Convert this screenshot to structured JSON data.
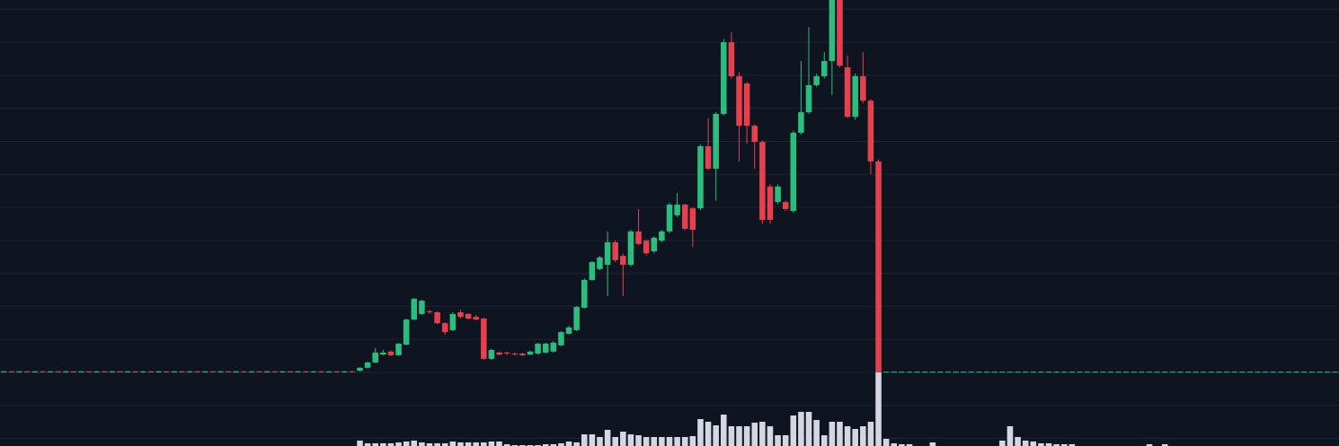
{
  "chart_data": {
    "type": "candlestick",
    "open": [
      0,
      0.3,
      0,
      0.3,
      0,
      0.3,
      0,
      0.3,
      0,
      0.3,
      0,
      0.3,
      0,
      0.3,
      0,
      0.3,
      0,
      0.3,
      0,
      0.3,
      0,
      0.3,
      0,
      0.3,
      0,
      0.3,
      0,
      0.3,
      0,
      0.3,
      0,
      0.3,
      0,
      0.3,
      0,
      0.3,
      0,
      0.3,
      0,
      0.3,
      0,
      0.3,
      0,
      0.3,
      0,
      0.3,
      0.5,
      1.4,
      3.0,
      5.4,
      6.3,
      5.2,
      8.4,
      16.0,
      17.7,
      18.5,
      18.2,
      14.9,
      12.8,
      18.2,
      17.7,
      16.8,
      16.3,
      4.1,
      6.0,
      6.0,
      5.7,
      5.7,
      5.4,
      5.7,
      6.0,
      6.3,
      8.2,
      11.7,
      12.8,
      19.6,
      28.0,
      31.3,
      32.6,
      39.4,
      35.3,
      32.6,
      42.7,
      39.9,
      36.7,
      39.9,
      42.7,
      47.6,
      50.8,
      49.7,
      49.7,
      68.5,
      61.7,
      78.3,
      100.0,
      89.7,
      87.5,
      74.7,
      69.8,
      56.3,
      51.6,
      51.6,
      48.9,
      72.6,
      78.8,
      87.0,
      89.7,
      94.3,
      112.8,
      92.4,
      77.4,
      89.7,
      82.3,
      63.9,
      0.1,
      0.1,
      0.1,
      0.1,
      0.1,
      0.1,
      0.1,
      0.1,
      0.1,
      0.1,
      0.1,
      0.1,
      0.1,
      0.1,
      0.1,
      0.1,
      0.1,
      0.1,
      0.1,
      0.1,
      0.1,
      0.1,
      0.1,
      0.1,
      0.1,
      0.1,
      0.1,
      0.1,
      0.1,
      0.1,
      0.1,
      0.1,
      0.1,
      0.1,
      0.1,
      0.1,
      0.1,
      0.1,
      0.1,
      0.1,
      0.1,
      0.1,
      0.1,
      0.1,
      0.1,
      0.1,
      0.1,
      0.1,
      0.1,
      0.1,
      0.1,
      0.1,
      0.1,
      0.1,
      0.1,
      0.1,
      0.1,
      0.1,
      0.1
    ],
    "high": [
      0.4,
      0.4,
      0.4,
      0.4,
      0.4,
      0.4,
      0.4,
      0.4,
      0.4,
      0.4,
      0.4,
      0.4,
      0.4,
      0.4,
      0.4,
      0.4,
      0.4,
      0.4,
      0.4,
      0.4,
      0.4,
      0.4,
      0.4,
      0.4,
      0.4,
      0.4,
      0.4,
      0.4,
      0.4,
      0.4,
      0.4,
      0.4,
      0.4,
      0.4,
      0.4,
      0.4,
      0.4,
      0.4,
      0.4,
      0.4,
      0.4,
      0.4,
      0.4,
      0.4,
      0.4,
      0.4,
      1.6,
      3.3,
      7.3,
      6.8,
      6.6,
      8.9,
      16.3,
      22.6,
      22.0,
      19.0,
      18.5,
      15.2,
      18.2,
      19.0,
      18.0,
      17.4,
      16.6,
      7.1,
      6.3,
      6.3,
      6.0,
      6.0,
      6.6,
      9.0,
      9.0,
      9.5,
      12.5,
      14.1,
      20.1,
      28.5,
      33.7,
      35.3,
      42.7,
      40.0,
      36.0,
      43.2,
      49.5,
      40.3,
      41.2,
      43.2,
      51.4,
      54.3,
      51.1,
      50.0,
      69.0,
      77.0,
      78.8,
      101.0,
      103.0,
      91.0,
      88.0,
      75.2,
      70.3,
      57.0,
      57.0,
      52.0,
      73.2,
      94.3,
      104.6,
      90.5,
      97.0,
      112.8,
      112.8,
      96.0,
      90.5,
      97.0,
      82.8,
      64.5,
      0.3,
      0.3,
      0.3,
      0.3,
      0.3,
      0.3,
      0.3,
      0.3,
      0.3,
      0.3,
      0.3,
      0.3,
      0.3,
      0.3,
      0.3,
      0.3,
      0.3,
      0.3,
      0.3,
      0.3,
      0.3,
      0.3,
      0.3,
      0.3,
      0.3,
      0.3,
      0.3,
      0.3,
      0.3,
      0.3,
      0.3,
      0.3,
      0.3,
      0.3,
      0.3,
      0.3,
      0.3,
      0.3,
      0.3,
      0.3,
      0.3,
      0.3,
      0.3,
      0.3,
      0.3,
      0.3,
      0.3,
      0.3,
      0.3,
      0.3,
      0.3,
      0.3,
      0.3,
      0.3,
      0.3,
      0.3,
      0.3,
      0.3,
      0.3
    ],
    "low": [
      0,
      0,
      0,
      0,
      0,
      0,
      0,
      0,
      0,
      0,
      0,
      0,
      0,
      0,
      0,
      0,
      0,
      0,
      0,
      0,
      0,
      0,
      0,
      0,
      0,
      0,
      0,
      0,
      0,
      0,
      0,
      0,
      0,
      0,
      0,
      0,
      0,
      0,
      0,
      0,
      0,
      0,
      0,
      0,
      0,
      0,
      0.3,
      1.2,
      2.8,
      5.2,
      4.9,
      5.0,
      8.2,
      15.8,
      17.4,
      17.7,
      14.6,
      11.4,
      12.5,
      16.3,
      16.0,
      15.8,
      3.8,
      3.8,
      5.2,
      5.2,
      5.2,
      4.9,
      5.2,
      5.4,
      5.7,
      6.0,
      7.9,
      11.4,
      12.5,
      19.3,
      27.7,
      31.0,
      23.1,
      33.4,
      23.1,
      32.0,
      38.5,
      35.5,
      36.1,
      39.4,
      42.2,
      47.0,
      43.0,
      38.0,
      49.2,
      61.2,
      52.0,
      77.8,
      89.0,
      63.9,
      69.3,
      61.7,
      45.0,
      45.0,
      51.0,
      48.9,
      48.4,
      72.0,
      78.3,
      86.5,
      89.0,
      84.0,
      92.4,
      77.0,
      76.5,
      81.5,
      60.0,
      0,
      0,
      0,
      0,
      0,
      0,
      0,
      0,
      0,
      0,
      0,
      0,
      0,
      0,
      0,
      0,
      0,
      0,
      0,
      0,
      0,
      0,
      0,
      0,
      0,
      0,
      0,
      0,
      0,
      0,
      0,
      0,
      0,
      0,
      0,
      0,
      0,
      0,
      0,
      0,
      0,
      0,
      0,
      0,
      0,
      0,
      0,
      0,
      0,
      0,
      0,
      0,
      0,
      0,
      0,
      0,
      0,
      0,
      0,
      0
    ],
    "close": [
      0.3,
      0,
      0.3,
      0,
      0.3,
      0,
      0.3,
      0,
      0.3,
      0,
      0.3,
      0,
      0.3,
      0,
      0.3,
      0,
      0.3,
      0,
      0.3,
      0,
      0.3,
      0,
      0.3,
      0,
      0.3,
      0,
      0.3,
      0,
      0.3,
      0,
      0.3,
      0,
      0.3,
      0,
      0.3,
      0,
      0.3,
      0,
      0.3,
      0,
      0.3,
      0,
      0.3,
      0,
      0.3,
      0,
      1.4,
      3.0,
      6.0,
      6.0,
      5.2,
      8.7,
      16.0,
      22.3,
      21.7,
      18.2,
      14.9,
      12.2,
      17.7,
      16.8,
      16.3,
      16.0,
      4.1,
      6.8,
      5.4,
      5.7,
      5.4,
      5.2,
      6.3,
      8.7,
      8.7,
      9.0,
      12.2,
      13.6,
      19.8,
      28.0,
      33.4,
      34.8,
      39.4,
      34.0,
      32.6,
      42.7,
      38.9,
      36.1,
      40.8,
      42.7,
      50.8,
      50.8,
      43.5,
      43.2,
      68.5,
      61.7,
      78.3,
      100.0,
      89.7,
      74.7,
      74.7,
      69.8,
      46.2,
      46.2,
      56.3,
      49.5,
      72.6,
      78.8,
      87.0,
      89.7,
      94.3,
      112.8,
      92.9,
      77.4,
      89.7,
      82.3,
      63.9,
      0,
      0.2,
      0.2,
      0.2,
      0.2,
      0.2,
      0.2,
      0.2,
      0.2,
      0.2,
      0.2,
      0.2,
      0.2,
      0.2,
      0.2,
      0.2,
      0.2,
      0.2,
      0.2,
      0.2,
      0.2,
      0.2,
      0.2,
      0.2,
      0.2,
      0.2,
      0.2,
      0.2,
      0.2,
      0.2,
      0.2,
      0.2,
      0.2,
      0.2,
      0.2,
      0.2,
      0.2,
      0.2,
      0.2,
      0.2,
      0.2,
      0.2,
      0.2,
      0.2,
      0.2,
      0.2,
      0.2,
      0.2,
      0.2,
      0.2,
      0.2,
      0.2,
      0.2,
      0.2,
      0.2,
      0.2,
      0.2,
      0.2,
      0.2,
      0.2
    ],
    "up_color": "#2bbd7e",
    "down_color": "#e5404d",
    "volume": {
      "axis": "y2",
      "color": "#d4d7e0",
      "values": [
        0,
        0,
        0,
        0,
        0,
        0,
        0,
        0,
        0,
        0,
        0,
        0,
        0,
        0,
        0,
        0,
        0,
        0,
        0,
        0,
        0,
        0,
        0,
        0,
        0,
        0,
        0,
        0,
        0,
        0,
        0,
        0,
        0,
        0,
        0,
        0,
        0,
        0,
        0,
        0,
        0,
        0,
        0,
        0,
        0,
        0,
        6,
        3,
        3,
        3,
        3,
        4,
        5,
        6,
        4,
        3,
        3,
        3,
        5,
        4,
        4,
        4,
        4,
        5,
        5,
        2,
        1,
        1,
        1,
        1,
        2,
        2,
        3,
        5,
        4,
        13,
        13,
        10,
        18,
        10,
        16,
        13,
        12,
        10,
        10,
        10,
        10,
        10,
        10,
        11,
        30,
        27,
        23,
        35,
        22,
        22,
        22,
        26,
        27,
        22,
        12,
        12,
        34,
        38,
        38,
        29,
        12,
        27,
        27,
        22,
        19,
        22,
        27,
        82,
        8,
        3,
        2,
        2,
        0,
        0,
        4,
        0,
        0,
        0,
        0,
        0,
        0,
        0,
        0,
        6,
        22,
        10,
        6,
        5,
        3,
        3,
        2,
        2,
        2,
        0,
        0,
        0,
        0,
        0,
        0,
        0,
        0,
        0,
        2,
        0,
        2,
        0,
        0,
        0,
        0,
        0,
        0,
        0,
        0,
        0,
        0,
        0,
        0,
        0,
        0,
        0,
        0,
        0,
        0,
        0,
        0,
        0,
        0
      ]
    },
    "ylim": [
      -22.3,
      112.8
    ],
    "yticks": [
      -20,
      -10,
      0,
      10,
      20,
      30,
      40,
      50,
      60,
      70,
      80,
      90,
      100,
      110
    ],
    "y2lim": [
      0,
      82
    ],
    "grid": true
  }
}
